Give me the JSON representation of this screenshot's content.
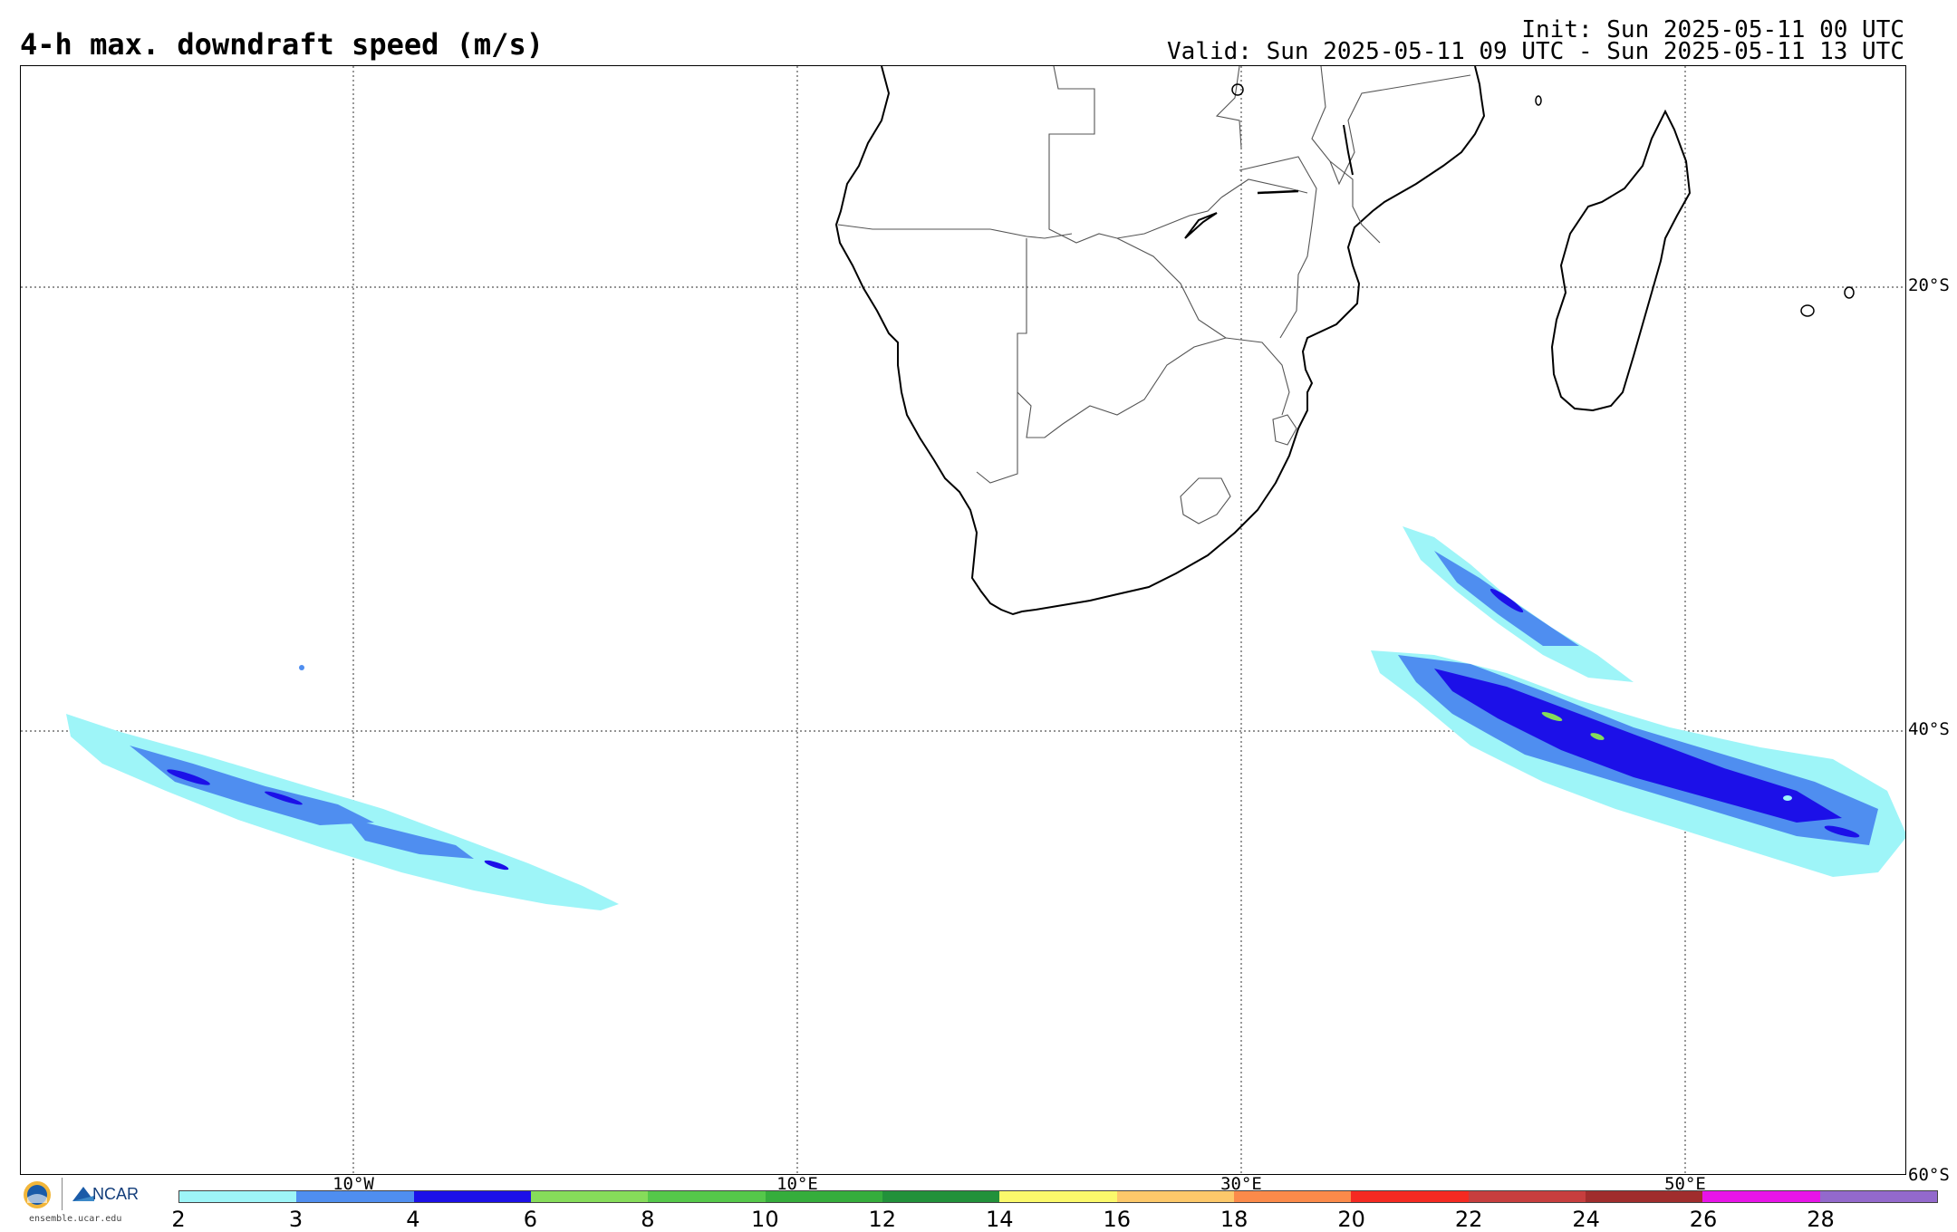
{
  "header": {
    "title": "4-h max. downdraft speed (m/s)",
    "init": "Init: Sun 2025-05-11 00 UTC",
    "valid": "Valid: Sun 2025-05-11 09 UTC - Sun 2025-05-11 13 UTC"
  },
  "map": {
    "lat_labels": [
      "20°S",
      "40°S",
      "60°S"
    ],
    "lon_labels": [
      "10°W",
      "10°E",
      "30°E",
      "50°E"
    ],
    "gridlines": "dotted"
  },
  "colorbar": {
    "ticks": [
      "2",
      "3",
      "4",
      "6",
      "8",
      "10",
      "12",
      "14",
      "16",
      "18",
      "20",
      "22",
      "24",
      "26",
      "28"
    ],
    "colors": [
      "#9ef5f8",
      "#4f8ef0",
      "#1c10e8",
      "#86dc5a",
      "#55c84a",
      "#35ad3c",
      "#22913a",
      "#fbf96b",
      "#fdc86a",
      "#fb8a4a",
      "#f52a22",
      "#c73e3e",
      "#a02d2d",
      "#e814e8",
      "#9369cc"
    ]
  },
  "footer": {
    "nsf_logo": "nsf-logo-icon",
    "ncar_label": "NCAR",
    "site": "ensemble.ucar.edu"
  }
}
